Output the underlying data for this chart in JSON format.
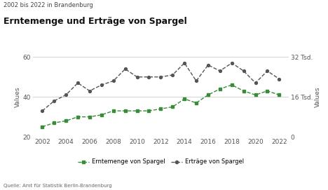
{
  "subtitle": "2002 bis 2022 in Brandenburg",
  "title": "Erntemenge und Erträge von Spargel",
  "source": "Quelle: Amt für Statistik Berlin-Brandenburg",
  "years": [
    2002,
    2003,
    2004,
    2005,
    2006,
    2007,
    2008,
    2009,
    2010,
    2011,
    2012,
    2013,
    2014,
    2016,
    2015,
    2017,
    2018,
    2019,
    2020,
    2021,
    2022
  ],
  "erntemenge": [
    25,
    27,
    28,
    30,
    30,
    31,
    33,
    33,
    33,
    33,
    34,
    35,
    39,
    41,
    37,
    44,
    46,
    43,
    41,
    43,
    41
  ],
  "ertraege": [
    33,
    38,
    41,
    47,
    43,
    46,
    48,
    54,
    50,
    50,
    50,
    51,
    57,
    56,
    48,
    53,
    57,
    53,
    47,
    53,
    49
  ],
  "years_sorted": [
    2002,
    2003,
    2004,
    2005,
    2006,
    2007,
    2008,
    2009,
    2010,
    2011,
    2012,
    2013,
    2014,
    2015,
    2016,
    2017,
    2018,
    2019,
    2020,
    2021,
    2022
  ],
  "erntemenge_sorted": [
    25,
    27,
    28,
    30,
    30,
    31,
    33,
    33,
    33,
    33,
    34,
    35,
    39,
    37,
    41,
    44,
    46,
    43,
    41,
    43,
    41
  ],
  "ertraege_sorted": [
    33,
    38,
    41,
    47,
    43,
    46,
    48,
    54,
    50,
    50,
    50,
    51,
    57,
    48,
    56,
    53,
    57,
    53,
    47,
    53,
    49
  ],
  "left_ylim": [
    20,
    60
  ],
  "left_yticks": [
    20,
    40,
    60
  ],
  "left_ytick_labels": [
    "20",
    "40",
    "60"
  ],
  "right_ytick_labels": [
    "32 Tsd.",
    "16 Tsd.",
    "0"
  ],
  "right_ytick_positions": [
    60,
    40,
    20
  ],
  "xticks": [
    2002,
    2004,
    2006,
    2008,
    2010,
    2012,
    2014,
    2016,
    2018,
    2020,
    2022
  ],
  "green_color": "#3a8c3a",
  "dark_color": "#555555",
  "legend_label_green": "Erntemenge von Spargel",
  "legend_label_dark": "Erträge von Spargel",
  "bg_color": "#ffffff",
  "grid_color": "#cccccc",
  "ylabel_left": "Values",
  "ylabel_right": "Values"
}
